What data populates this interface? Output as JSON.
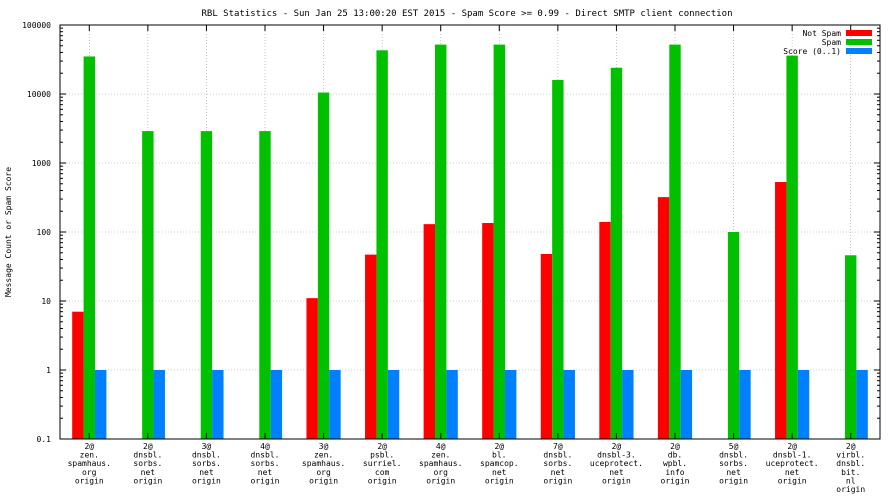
{
  "chart_data": {
    "type": "bar",
    "title": "RBL Statistics - Sun Jan 25 13:00:20 EST 2015 - Spam Score >= 0.99 - Direct SMTP client connection",
    "xlabel": "",
    "ylabel": "Message Count or Spam Score",
    "yscale": "log",
    "ylim": [
      0.1,
      100000
    ],
    "yticks": [
      "0.1",
      "1",
      "10",
      "100",
      "1000",
      "10000",
      "100000"
    ],
    "grid": true,
    "legend_position": "top-right",
    "categories": [
      [
        "2@",
        "zen.",
        "spamhaus.",
        "org",
        "origin"
      ],
      [
        "2@",
        "dnsbl.",
        "sorbs.",
        "net",
        "origin"
      ],
      [
        "3@",
        "dnsbl.",
        "sorbs.",
        "net",
        "origin"
      ],
      [
        "4@",
        "dnsbl.",
        "sorbs.",
        "net",
        "origin"
      ],
      [
        "3@",
        "zen.",
        "spamhaus.",
        "org",
        "origin"
      ],
      [
        "2@",
        "psbl.",
        "surriel.",
        "com",
        "origin"
      ],
      [
        "4@",
        "zen.",
        "spamhaus.",
        "org",
        "origin"
      ],
      [
        "2@",
        "bl.",
        "spamcop.",
        "net",
        "origin"
      ],
      [
        "7@",
        "dnsbl.",
        "sorbs.",
        "net",
        "origin"
      ],
      [
        "2@",
        "dnsbl-3.",
        "uceprotect.",
        "net",
        "origin"
      ],
      [
        "2@",
        "db.",
        "wpbl.",
        "info",
        "origin"
      ],
      [
        "5@",
        "dnsbl.",
        "sorbs.",
        "net",
        "origin"
      ],
      [
        "2@",
        "dnsbl-1.",
        "uceprotect.",
        "net",
        "origin"
      ],
      [
        "2@",
        "virbl.",
        "dnsbl.",
        "bit.",
        "nl",
        "origin"
      ]
    ],
    "series": [
      {
        "name": "Not Spam",
        "color": "#ff0000",
        "values": [
          7,
          null,
          null,
          null,
          11,
          47,
          130,
          135,
          48,
          140,
          320,
          null,
          530,
          null
        ]
      },
      {
        "name": "Spam",
        "color": "#00c000",
        "values": [
          35000,
          2900,
          2900,
          2900,
          10500,
          43000,
          52000,
          52000,
          16000,
          24000,
          52000,
          100,
          36000,
          46
        ]
      },
      {
        "name": "Score (0..1)",
        "color": "#0080ff",
        "values": [
          1,
          1,
          1,
          1,
          1,
          1,
          1,
          1,
          1,
          1,
          1,
          1,
          1,
          1
        ]
      }
    ]
  }
}
